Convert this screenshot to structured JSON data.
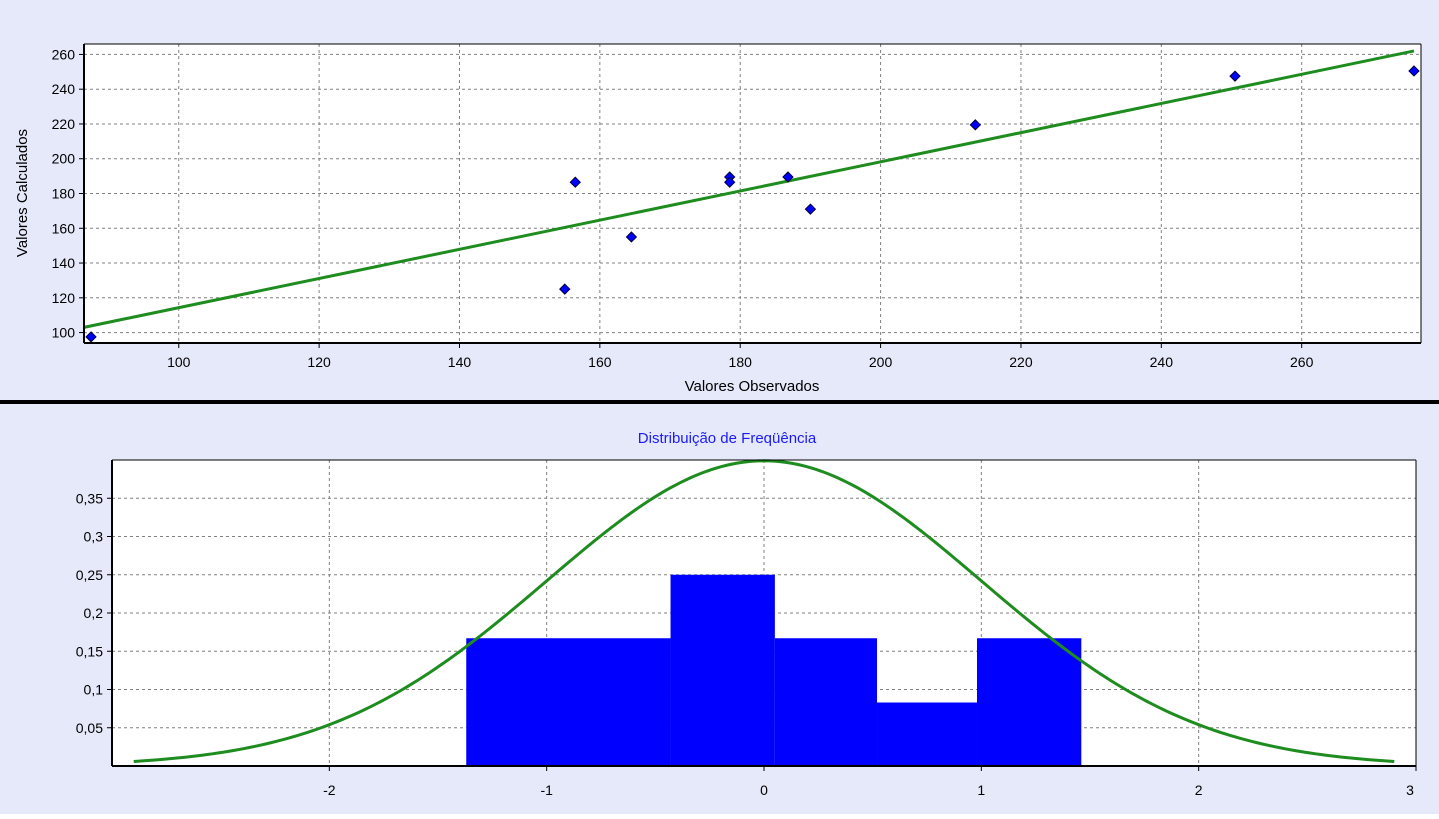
{
  "colors": {
    "panel_bg": "#e6e9f9",
    "plot_bg": "#ffffff",
    "grid": "#808080",
    "series_green": "#1e8c1e",
    "points_blue": "#0000ff",
    "title_blue": "#1a1aff"
  },
  "chart_data": [
    {
      "type": "scatter",
      "title": "",
      "xlabel": "Valores Observados",
      "ylabel": "Valores Calculados",
      "xlim": [
        86.5,
        277
      ],
      "ylim": [
        94,
        266
      ],
      "xticks": [
        100,
        120,
        140,
        160,
        180,
        200,
        220,
        240,
        260
      ],
      "yticks": [
        100,
        120,
        140,
        160,
        180,
        200,
        220,
        240,
        260
      ],
      "tick_labels_x": [
        "100",
        "120",
        "140",
        "160",
        "180",
        "200",
        "220",
        "240",
        "260"
      ],
      "tick_labels_y": [
        "100",
        "120",
        "140",
        "160",
        "180",
        "200",
        "220",
        "240",
        "260"
      ],
      "grid": true,
      "series": [
        {
          "points": [
            {
              "x": 87.5,
              "y": 97.5
            },
            {
              "x": 155,
              "y": 125
            },
            {
              "x": 156.5,
              "y": 186.5
            },
            {
              "x": 164.5,
              "y": 155
            },
            {
              "x": 178.5,
              "y": 189.5
            },
            {
              "x": 178.5,
              "y": 186.5
            },
            {
              "x": 186.8,
              "y": 189.5
            },
            {
              "x": 190,
              "y": 171
            },
            {
              "x": 213.5,
              "y": 219.5
            },
            {
              "x": 250.5,
              "y": 247.5
            },
            {
              "x": 276,
              "y": 250.5
            }
          ]
        }
      ],
      "fit_line": [
        {
          "x": 86.5,
          "y": 103
        },
        {
          "x": 276,
          "y": 262
        }
      ]
    },
    {
      "type": "bar",
      "title": "Distribuição de Freqüência",
      "xlabel": "",
      "ylabel": "",
      "xlim": [
        -3,
        3
      ],
      "ylim": [
        0,
        0.4
      ],
      "xticks": [
        -2,
        -1,
        0,
        1,
        2,
        3
      ],
      "yticks": [
        0.05,
        0.1,
        0.15,
        0.2,
        0.25,
        0.3,
        0.35
      ],
      "tick_labels_x": [
        "-2",
        "-1",
        "0",
        "1",
        "2",
        "3"
      ],
      "tick_labels_y": [
        "0,05",
        "0,1",
        "0,15",
        "0,2",
        "0,25",
        "0,3",
        "0,35"
      ],
      "grid": true,
      "bins": [
        {
          "x0": -1.37,
          "x1": -0.43,
          "value": 0.167
        },
        {
          "x0": -0.43,
          "x1": 0.05,
          "value": 0.25
        },
        {
          "x0": 0.05,
          "x1": 0.52,
          "value": 0.167
        },
        {
          "x0": 0.52,
          "x1": 0.98,
          "value": 0.083
        },
        {
          "x0": 0.98,
          "x1": 1.46,
          "value": 0.167
        }
      ],
      "curve": {
        "kind": "normal",
        "mean": 0,
        "sd": 1,
        "xmin": -2.9,
        "xmax": 2.9
      }
    }
  ]
}
